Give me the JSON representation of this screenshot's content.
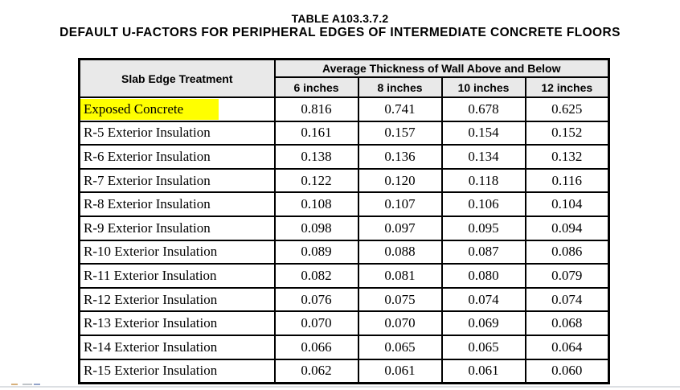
{
  "title": {
    "line1": "TABLE A103.3.7.2",
    "line2": "DEFAULT U-FACTORS FOR PERIPHERAL EDGES OF INTERMEDIATE CONCRETE FLOORS"
  },
  "table": {
    "corner_header": "Slab Edge Treatment",
    "group_header": "Average Thickness of Wall Above and Below",
    "sub_headers": [
      "6 inches",
      "8 inches",
      "10 inches",
      "12 inches"
    ],
    "rows": [
      {
        "label": "Exposed Concrete",
        "highlighted": true,
        "values": [
          "0.816",
          "0.741",
          "0.678",
          "0.625"
        ]
      },
      {
        "label": "R-5 Exterior Insulation",
        "highlighted": false,
        "values": [
          "0.161",
          "0.157",
          "0.154",
          "0.152"
        ]
      },
      {
        "label": "R-6 Exterior Insulation",
        "highlighted": false,
        "values": [
          "0.138",
          "0.136",
          "0.134",
          "0.132"
        ]
      },
      {
        "label": "R-7 Exterior Insulation",
        "highlighted": false,
        "values": [
          "0.122",
          "0.120",
          "0.118",
          "0.116"
        ]
      },
      {
        "label": "R-8 Exterior Insulation",
        "highlighted": false,
        "values": [
          "0.108",
          "0.107",
          "0.106",
          "0.104"
        ]
      },
      {
        "label": "R-9 Exterior Insulation",
        "highlighted": false,
        "values": [
          "0.098",
          "0.097",
          "0.095",
          "0.094"
        ]
      },
      {
        "label": "R-10 Exterior Insulation",
        "highlighted": false,
        "values": [
          "0.089",
          "0.088",
          "0.087",
          "0.086"
        ]
      },
      {
        "label": "R-11 Exterior Insulation",
        "highlighted": false,
        "values": [
          "0.082",
          "0.081",
          "0.080",
          "0.079"
        ]
      },
      {
        "label": "R-12 Exterior Insulation",
        "highlighted": false,
        "values": [
          "0.076",
          "0.075",
          "0.074",
          "0.074"
        ]
      },
      {
        "label": "R-13 Exterior Insulation",
        "highlighted": false,
        "values": [
          "0.070",
          "0.070",
          "0.069",
          "0.068"
        ]
      },
      {
        "label": "R-14 Exterior Insulation",
        "highlighted": false,
        "values": [
          "0.066",
          "0.065",
          "0.065",
          "0.064"
        ]
      },
      {
        "label": "R-15 Exterior Insulation",
        "highlighted": false,
        "values": [
          "0.062",
          "0.061",
          "0.061",
          "0.060"
        ]
      }
    ]
  },
  "colors": {
    "highlight": "#ffff00",
    "header_bg": "#e9e9e9",
    "border": "#000000",
    "bottom_rule": "#dcdfe3"
  }
}
